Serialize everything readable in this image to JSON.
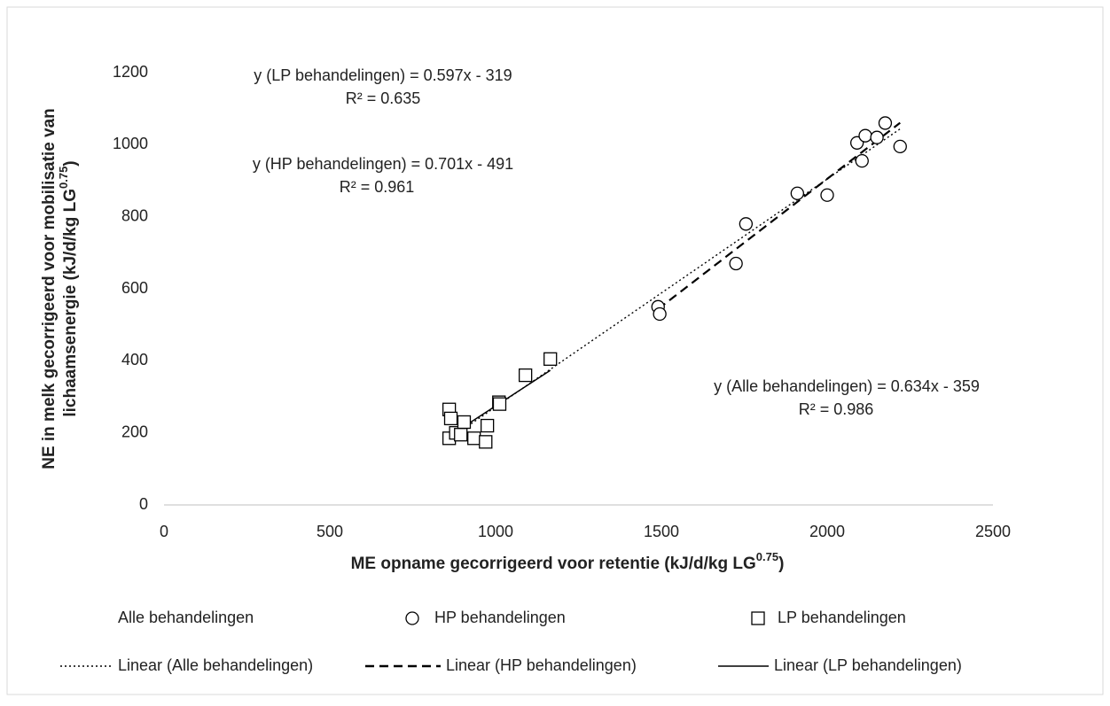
{
  "chart_data": {
    "type": "scatter",
    "xlabel": [
      "ME opname gecorrigeerd voor retentie (kJ/d/kg LG",
      "0.75",
      ")"
    ],
    "ylabel": [
      "NE in melk gecorrigeerd voor mobilisatie van",
      "lichaamsenergie (kJ/d/kg LG",
      "0.75",
      ")"
    ],
    "xlim": [
      0,
      2500
    ],
    "xticks": [
      0,
      500,
      1000,
      1500,
      2000,
      2500
    ],
    "ylim": [
      0,
      1200
    ],
    "yticks": [
      0,
      200,
      400,
      600,
      800,
      1000,
      1200
    ],
    "series": [
      {
        "name": "Alle behandelingen",
        "marker": "none",
        "x": [],
        "values": []
      },
      {
        "name": "HP behandelingen",
        "marker": "circle",
        "color": "#000000",
        "x": [
          1490,
          1495,
          1725,
          1755,
          1910,
          2000,
          2090,
          2105,
          2115,
          2150,
          2175,
          2220
        ],
        "values": [
          550,
          530,
          670,
          780,
          865,
          860,
          1005,
          955,
          1025,
          1020,
          1060,
          995
        ]
      },
      {
        "name": "LP behandelingen",
        "marker": "square",
        "color": "#000000",
        "x": [
          860,
          865,
          860,
          880,
          895,
          905,
          935,
          970,
          975,
          1010,
          1012,
          1090,
          1165
        ],
        "values": [
          265,
          240,
          185,
          200,
          195,
          230,
          185,
          175,
          220,
          285,
          280,
          360,
          405
        ]
      }
    ],
    "trendlines": [
      {
        "name": "Linear (Alle behandelingen)",
        "style": "dotted"
      },
      {
        "name": "Linear (HP behandelingen)",
        "style": "dashed"
      },
      {
        "name": "Linear (LP behandelingen)",
        "style": "solid"
      }
    ],
    "annotations": [
      "y (LP behandelingen)  = 0.597x - 319",
      "R² = 0.635",
      "y (HP behandelingen)  = 0.701x - 491",
      "R² = 0.961",
      "y (Alle behandelingen)  = 0.634x - 359",
      "R² = 0.986"
    ]
  }
}
